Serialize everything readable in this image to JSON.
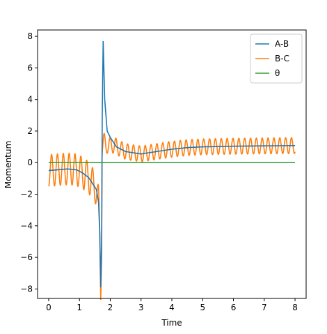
{
  "chart_data": {
    "type": "line",
    "title": "",
    "xlabel": "Time",
    "ylabel": "Momentum",
    "xlim": [
      -0.36,
      8.36
    ],
    "ylim": [
      -8.6,
      8.4
    ],
    "xticks": [
      0,
      1,
      2,
      3,
      4,
      5,
      6,
      7,
      8
    ],
    "yticks": [
      -8,
      -6,
      -4,
      -2,
      0,
      2,
      4,
      6,
      8
    ],
    "grid": false,
    "legend_position": "top-right",
    "series": [
      {
        "name": "A-B",
        "color": "#1f77b4",
        "x": [
          0.0,
          0.3,
          0.6,
          0.9,
          1.1,
          1.3,
          1.45,
          1.55,
          1.62,
          1.66,
          1.69,
          1.72,
          1.74,
          1.77,
          1.82,
          1.9,
          2.0,
          2.2,
          2.5,
          3.0,
          3.5,
          4.0,
          4.5,
          5.0,
          5.5,
          6.0,
          6.5,
          7.0,
          7.5,
          8.0
        ],
        "y": [
          -0.5,
          -0.45,
          -0.4,
          -0.45,
          -0.65,
          -0.95,
          -1.4,
          -1.7,
          -2.5,
          -4.5,
          -7.9,
          -5.0,
          3.0,
          7.7,
          4.0,
          2.0,
          1.6,
          1.0,
          0.7,
          0.55,
          0.7,
          0.85,
          0.95,
          1.0,
          1.02,
          1.04,
          1.05,
          1.06,
          1.07,
          1.08
        ]
      },
      {
        "name": "B-C",
        "color": "#ff7f0e",
        "form": "oscillation around the A-B trend",
        "oscillation_period": 0.19,
        "amplitude_before_transition": 1.0,
        "amplitude_after_transition": 0.5,
        "transition_start": 1.7,
        "transition_end": 1.9,
        "x_range": [
          0,
          8
        ],
        "first_value": -1.5,
        "last_value": -0.3
      },
      {
        "name": "θ",
        "color": "#2ca02c",
        "x": [
          0,
          8
        ],
        "y": [
          0,
          0
        ]
      }
    ]
  }
}
